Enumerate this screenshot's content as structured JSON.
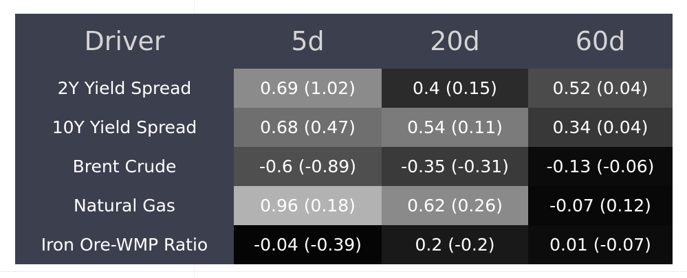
{
  "table": {
    "header": [
      "Driver",
      "5d",
      "20d",
      "60d"
    ],
    "rows": [
      [
        "2Y Yield Spread",
        "0.69 (1.02)",
        "0.4 (0.15)",
        "0.52 (0.04)"
      ],
      [
        "10Y Yield Spread",
        "0.68 (0.47)",
        "0.54 (0.11)",
        "0.34 (0.04)"
      ],
      [
        "Brent Crude",
        "-0.6 (-0.89)",
        "-0.35 (-0.31)",
        "-0.13 (-0.06)"
      ],
      [
        "Natural Gas",
        "0.96 (0.18)",
        "0.62 (0.26)",
        "-0.07 (0.12)"
      ],
      [
        "Iron Ore-WMP Ratio",
        "-0.04 (-0.39)",
        "0.2 (-0.2)",
        "0.01 (-0.07)"
      ]
    ]
  }
}
